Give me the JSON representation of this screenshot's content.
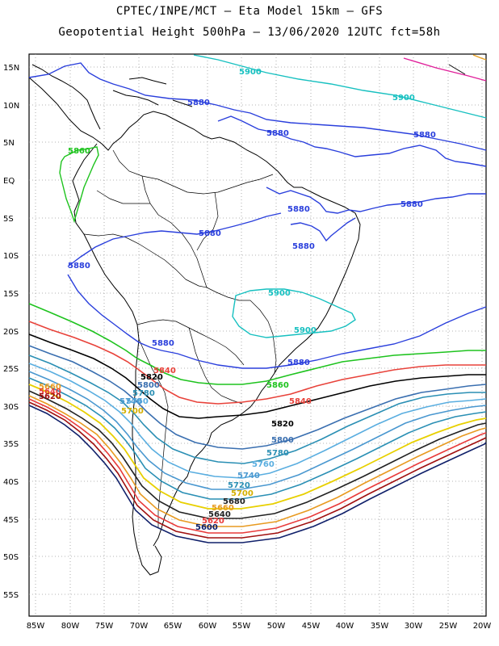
{
  "header": {
    "title_line1": "CPTEC/INPE/MCT  –  Eta Model 15km  –  GFS",
    "title_line2": "Geopotential Height 500hPa  –  13/06/2020  12UTC  fct=58h"
  },
  "axes": {
    "lat_labels": [
      "15N",
      "10N",
      "5N",
      "EQ",
      "5S",
      "10S",
      "15S",
      "20S",
      "25S",
      "30S",
      "35S",
      "40S",
      "45S",
      "50S",
      "55S"
    ],
    "lon_labels": [
      "85W",
      "80W",
      "75W",
      "70W",
      "65W",
      "60W",
      "55W",
      "50W",
      "45W",
      "40W",
      "35W",
      "30W",
      "25W",
      "20W"
    ]
  },
  "contours": {
    "colors": {
      "c5900": "#17c0c0",
      "c5880": "#2a3fdc",
      "c5860": "#1ec31e",
      "c5840": "#e8423a",
      "c5820": "#000000",
      "c5800": "#3a6fb0",
      "c5780": "#2a8fb4",
      "c5760": "#5aaee0",
      "c5740": "#4a98d0",
      "c5720": "#d4b000",
      "c5700": "#e8c000",
      "c5680": "#222222",
      "c5660": "#e89a20",
      "c5640": "#e83a3a",
      "c5620": "#a01010",
      "c5600": "#10206a",
      "c5920": "#e0209a"
    },
    "labels": {
      "l5900_top": "5900",
      "l5900_topright": "5900",
      "l5880_nw": "5880",
      "l5880_ne": "5880",
      "l5880_caribbean": "5880",
      "l5880_coast": "5880",
      "l5880_east": "5880",
      "l5880_brazil": "5880",
      "l5880_peru": "5880",
      "l5860_andes": "5860",
      "l5900_center": "5900",
      "l5900_center2": "5900",
      "l5880_south": "5880",
      "l5880_pac": "5880",
      "l5840_a": "5840",
      "l5820_a": "5820",
      "l5800_a": "5800",
      "l5780_a": "5780",
      "l5760_a": "5760",
      "l5740_a": "5740",
      "l5720_a": "5720",
      "l5700_a": "5700",
      "l5860_b": "5860",
      "l5840_b": "5840",
      "l5820_b": "5820",
      "l5800_b": "5800",
      "l5780_b": "5780",
      "l5760_b": "5760",
      "l5740_b": "5740",
      "l5720_b": "5720",
      "l5700_b": "5700",
      "l5680_b": "5680",
      "l5660_b": "5660",
      "l5640_b": "5640",
      "l5620_b": "5620",
      "l5600_b": "5600",
      "l5660_w": "5660",
      "l5640_w": "5640",
      "l5620_w": "5620"
    }
  }
}
